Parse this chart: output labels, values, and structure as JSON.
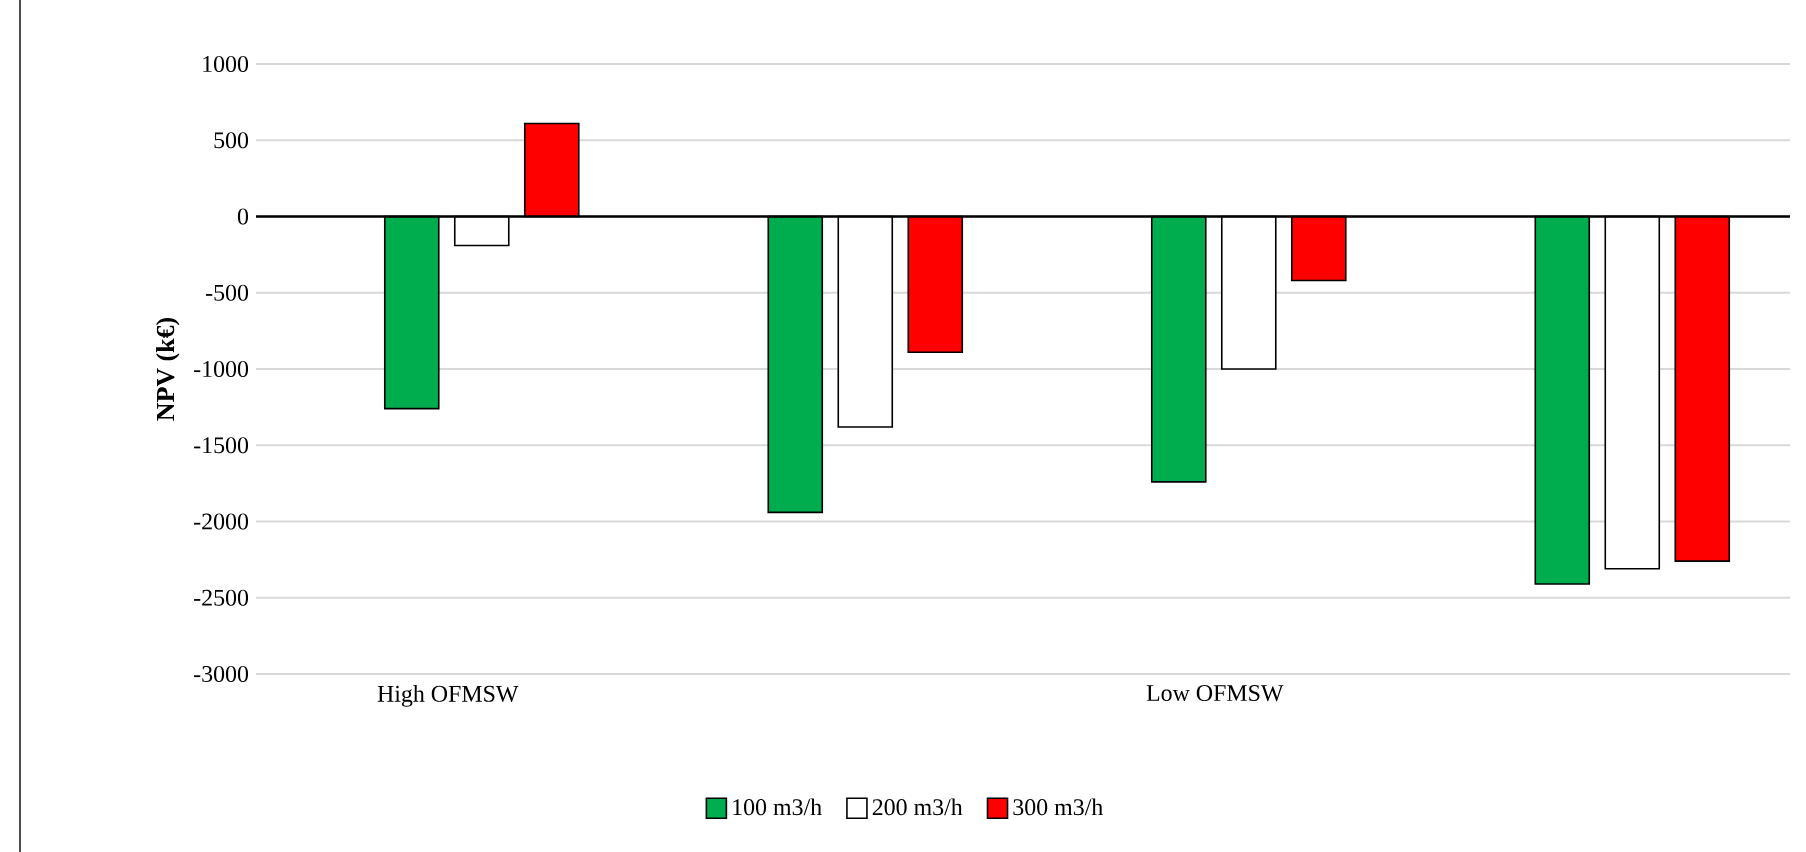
{
  "chart_data": {
    "type": "bar",
    "ylabel": "NPV (k€)",
    "categories": [
      "High OFMSW",
      null,
      "Low OFMSW",
      null
    ],
    "series": [
      {
        "name": "100 m3/h",
        "color": "#00ad4e",
        "values": [
          -1260,
          -1940,
          -1740,
          -2410
        ]
      },
      {
        "name": "200 m3/h",
        "color": "#ffffff",
        "values": [
          -190,
          -1380,
          -1000,
          -2310
        ]
      },
      {
        "name": "300 m3/h",
        "color": "#ff0000",
        "values": [
          610,
          -890,
          -420,
          -2260
        ]
      }
    ],
    "ylim": [
      -3000,
      1000
    ],
    "yticks": [
      -3000,
      -2500,
      -2000,
      -1500,
      -1000,
      -500,
      0,
      500,
      1000
    ],
    "grid": "y",
    "legend": "bottom"
  }
}
